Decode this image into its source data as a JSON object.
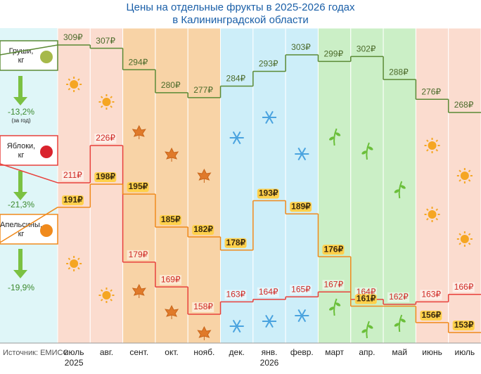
{
  "chart_data": {
    "type": "line",
    "title": "Цены на отдельные фрукты в 2025-2026 годах",
    "subtitle": "в Калининградской области",
    "categories": [
      "июль",
      "авг.",
      "сент.",
      "окт.",
      "нояб.",
      "дек.",
      "янв.",
      "февр.",
      "март",
      "апр.",
      "май",
      "июнь",
      "июль"
    ],
    "category_years": [
      "2025",
      null,
      null,
      null,
      null,
      null,
      "2026",
      null,
      null,
      null,
      null,
      null,
      null
    ],
    "series": [
      {
        "name": "Груши, кг",
        "color": "#5b8a35",
        "change": "-13,2%",
        "change_note": "(за год)",
        "values": [
          309,
          307,
          294,
          280,
          277,
          284,
          293,
          303,
          299,
          302,
          288,
          276,
          268
        ],
        "value_labels": [
          "309₽",
          "307₽",
          "294₽",
          "280₽",
          "277₽",
          "284₽",
          "293₽",
          "303₽",
          "299₽",
          "302₽",
          "288₽",
          "276₽",
          "268₽"
        ]
      },
      {
        "name": "Яблоки, кг",
        "color": "#e8413c",
        "change": "-21,3%",
        "values": [
          211,
          226,
          179,
          169,
          158,
          163,
          164,
          165,
          167,
          164,
          162,
          163,
          166
        ],
        "value_labels": [
          "211₽",
          "226₽",
          "179₽",
          "169₽",
          "158₽",
          "163₽",
          "164₽",
          "165₽",
          "167₽",
          "164₽",
          "162₽",
          "163₽",
          "166₽"
        ]
      },
      {
        "name": "Апельсины, кг",
        "color": "#f08a1c",
        "change": "-19,9%",
        "values": [
          191,
          198,
          195,
          185,
          182,
          178,
          193,
          189,
          176,
          161,
          161,
          156,
          153
        ],
        "value_labels": [
          "191₽",
          "198₽",
          "195₽",
          "185₽",
          "182₽",
          "178₽",
          "193₽",
          "189₽",
          "176₽",
          "161₽",
          null,
          "156₽",
          "153₽"
        ]
      }
    ],
    "source": "Источник: ЕМИСС"
  }
}
